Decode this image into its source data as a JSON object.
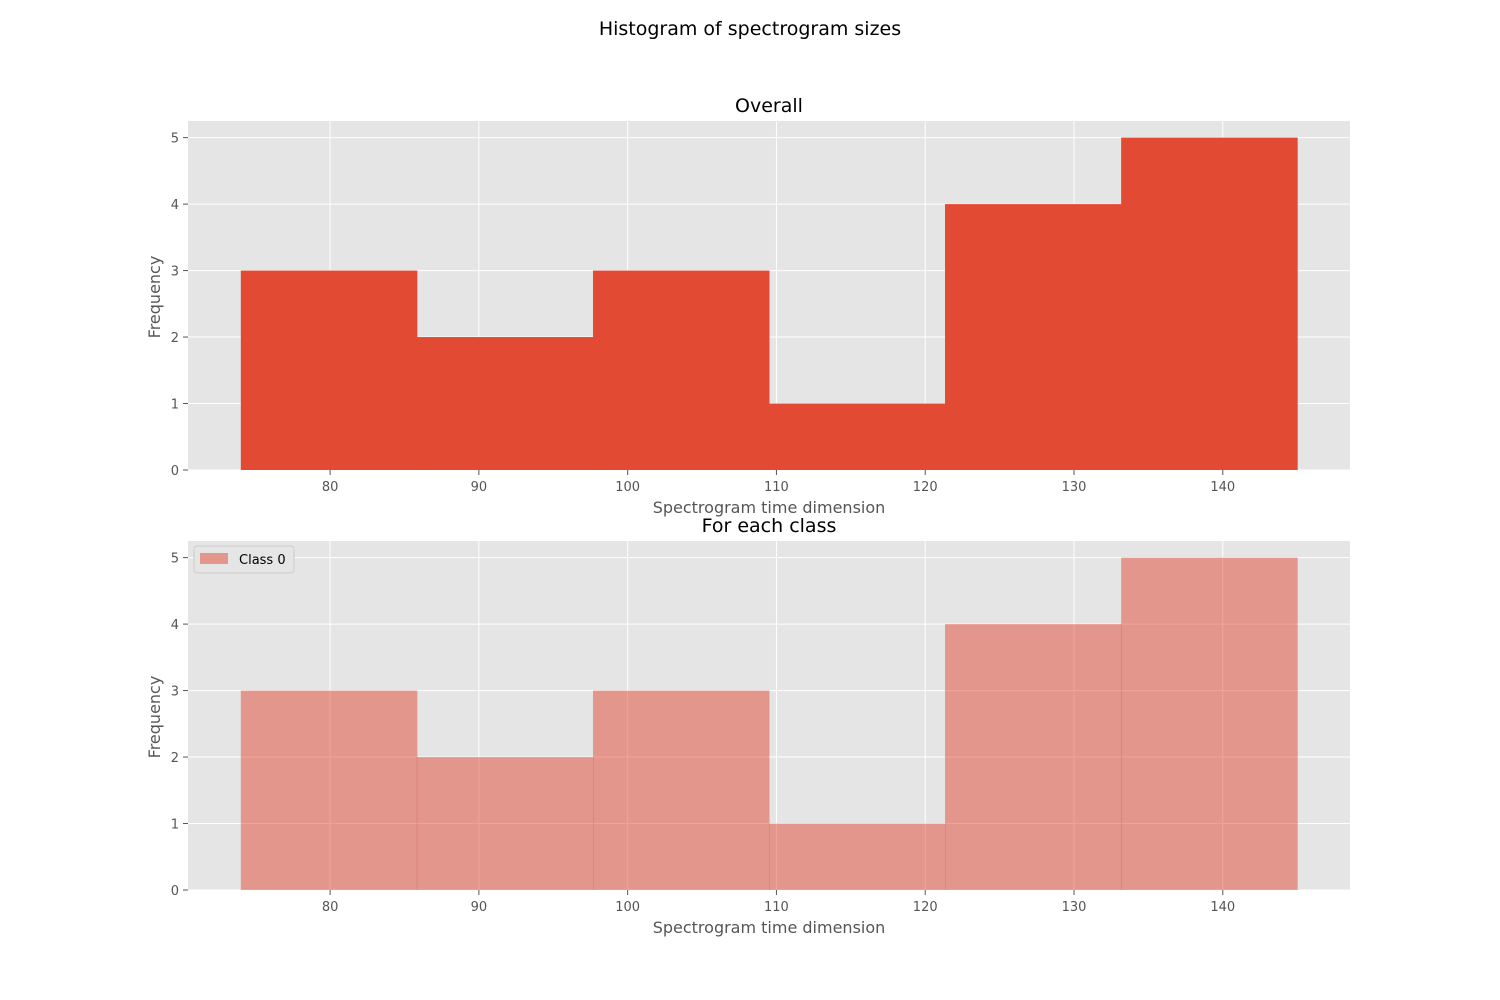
{
  "figure": {
    "suptitle": "Histogram of spectrogram sizes"
  },
  "chart_data": [
    {
      "type": "bar",
      "title": "Overall",
      "xlabel": "Spectrogram time dimension",
      "ylabel": "Frequency",
      "bin_edges": [
        74.0,
        85.83,
        97.67,
        109.5,
        121.33,
        133.17,
        145.0
      ],
      "values": [
        3,
        2,
        3,
        1,
        4,
        5
      ],
      "xlim": [
        70.45,
        148.55
      ],
      "ylim": [
        0,
        5.25
      ],
      "xticks": [
        80,
        90,
        100,
        110,
        120,
        130,
        140
      ],
      "yticks": [
        0,
        1,
        2,
        3,
        4,
        5
      ],
      "color": "#E24A33",
      "opacity": 1.0,
      "grid": true,
      "legend": null
    },
    {
      "type": "bar",
      "title": "For each class",
      "xlabel": "Spectrogram time dimension",
      "ylabel": "Frequency",
      "bin_edges": [
        74.0,
        85.83,
        97.67,
        109.5,
        121.33,
        133.17,
        145.0
      ],
      "series": [
        {
          "name": "Class 0",
          "values": [
            3,
            2,
            3,
            1,
            4,
            5
          ]
        }
      ],
      "xlim": [
        70.45,
        148.55
      ],
      "ylim": [
        0,
        5.25
      ],
      "xticks": [
        80,
        90,
        100,
        110,
        120,
        130,
        140
      ],
      "yticks": [
        0,
        1,
        2,
        3,
        4,
        5
      ],
      "color": "#E24A33",
      "opacity": 0.5,
      "grid": true,
      "legend": "upper left"
    }
  ]
}
